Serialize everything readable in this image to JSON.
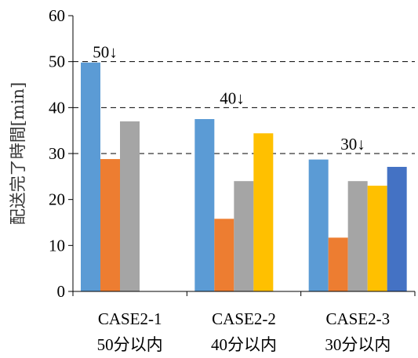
{
  "chart_data": {
    "type": "bar",
    "ylabel": "配送完了時間[min]",
    "ylim": [
      0,
      60
    ],
    "yticks": [
      0,
      10,
      20,
      30,
      40,
      50,
      60
    ],
    "categories": [
      {
        "line1": "CASE2-1",
        "line2": "50分以内"
      },
      {
        "line1": "CASE2-2",
        "line2": "40分以内"
      },
      {
        "line1": "CASE2-3",
        "line2": "30分以内"
      }
    ],
    "series": [
      {
        "color": "#5B9BD5",
        "values": [
          49.8,
          37.5,
          28.7
        ]
      },
      {
        "color": "#ED7D31",
        "values": [
          28.8,
          15.8,
          11.7
        ]
      },
      {
        "color": "#A5A5A5",
        "values": [
          37.0,
          24.0,
          24.0
        ]
      },
      {
        "color": "#FFC000",
        "values": [
          null,
          34.4,
          23.0
        ]
      },
      {
        "color": "#4472C4",
        "values": [
          null,
          null,
          27.1
        ]
      }
    ],
    "reference_lines": [
      {
        "value": 50,
        "label": "50↓",
        "category_index": 0
      },
      {
        "value": 40,
        "label": "40↓",
        "category_index": 1
      },
      {
        "value": 30,
        "label": "30↓",
        "category_index": 2
      }
    ],
    "grid": false,
    "legend": "none"
  }
}
